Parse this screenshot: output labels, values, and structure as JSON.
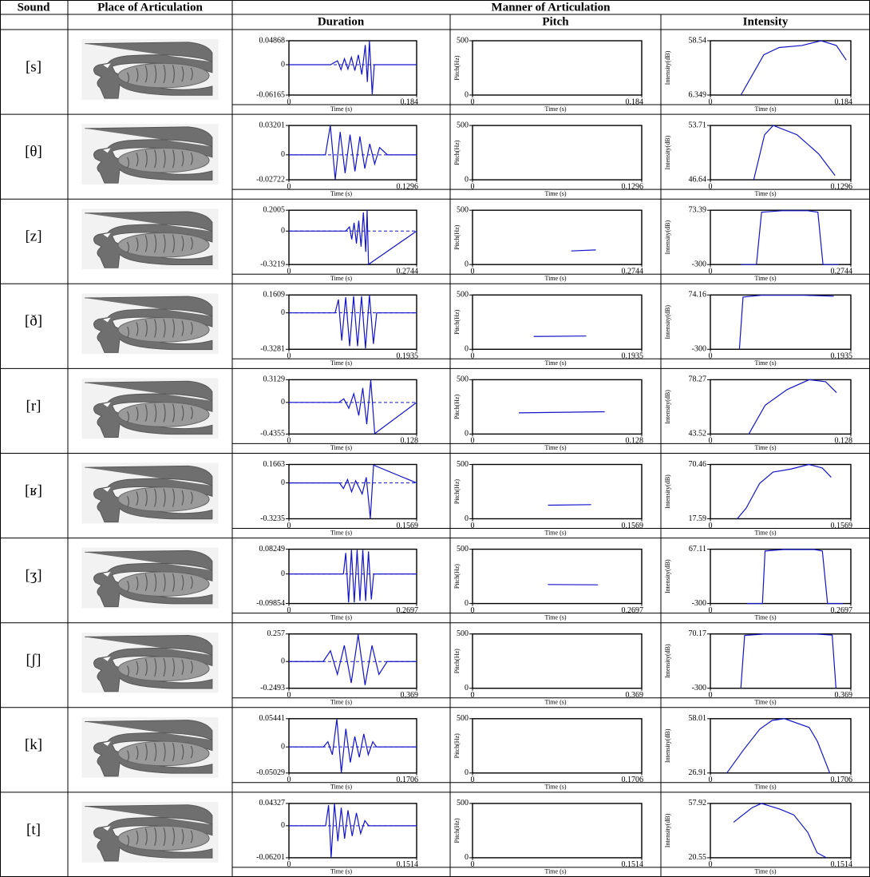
{
  "header": {
    "sound": "Sound",
    "place": "Place of Articulation",
    "manner": "Manner of Articulation",
    "duration": "Duration",
    "pitch": "Pitch",
    "intensity": "Intensity"
  },
  "axis_labels": {
    "time": "Time (s)",
    "pitch": "Pitch(Hz)",
    "intensity": "Intensity(dB)"
  },
  "line_color": "#1414c8",
  "rows": [
    {
      "sound": "[s]",
      "duration": {
        "type": "line",
        "xlim": [
          0,
          0.184
        ],
        "xticks": [
          0,
          0.184
        ],
        "ylim": [
          -0.06165,
          0.04868
        ],
        "yticks": [
          0.04868,
          0,
          -0.06165
        ],
        "x": [
          0,
          0.06,
          0.07,
          0.075,
          0.08,
          0.085,
          0.09,
          0.095,
          0.1,
          0.105,
          0.11,
          0.113,
          0.116,
          0.12,
          0.123,
          0.184
        ],
        "values": [
          0,
          0,
          0.008,
          -0.01,
          0.012,
          -0.009,
          0.015,
          -0.012,
          0.02,
          -0.02,
          0.04,
          -0.035,
          0.048,
          -0.06,
          0,
          0
        ]
      },
      "pitch": {
        "type": "line",
        "xlim": [
          0,
          0.184
        ],
        "xticks": [
          0,
          0.184
        ],
        "ylim": [
          0,
          500
        ],
        "yticks": [
          500,
          0
        ]
      },
      "intensity": {
        "type": "line",
        "xlim": [
          0,
          0.184
        ],
        "xticks": [
          0,
          0.184
        ],
        "ylim": [
          6.349,
          58.54
        ],
        "yticks": [
          58.54,
          6.349
        ],
        "x": [
          0.04,
          0.07,
          0.09,
          0.12,
          0.145,
          0.165,
          0.178
        ],
        "values": [
          6.349,
          45,
          52,
          54,
          58.54,
          54,
          40
        ]
      }
    },
    {
      "sound": "[θ]",
      "duration": {
        "type": "line",
        "xlim": [
          0,
          0.1296
        ],
        "xticks": [
          0,
          0.1296
        ],
        "ylim": [
          -0.02722,
          0.03201
        ],
        "yticks": [
          0.03201,
          0,
          -0.02722
        ],
        "x": [
          0,
          0.037,
          0.042,
          0.047,
          0.052,
          0.057,
          0.062,
          0.067,
          0.072,
          0.077,
          0.082,
          0.087,
          0.092,
          0.1,
          0.1296
        ],
        "values": [
          0,
          0,
          0.032,
          -0.027,
          0.025,
          -0.02,
          0.022,
          -0.018,
          0.02,
          -0.015,
          0.012,
          -0.01,
          0.008,
          0,
          0
        ]
      },
      "pitch": {
        "type": "line",
        "xlim": [
          0,
          0.1296
        ],
        "xticks": [
          0,
          0.1296
        ],
        "ylim": [
          0,
          500
        ],
        "yticks": [
          500,
          0
        ]
      },
      "intensity": {
        "type": "line",
        "xlim": [
          0,
          0.1296
        ],
        "xticks": [
          0,
          0.1296
        ],
        "ylim": [
          46.64,
          53.71
        ],
        "yticks": [
          53.71,
          46.64
        ],
        "x": [
          0.04,
          0.05,
          0.058,
          0.08,
          0.1,
          0.115
        ],
        "values": [
          46.64,
          52.5,
          53.71,
          52.5,
          50,
          47.2
        ]
      }
    },
    {
      "sound": "[z]",
      "duration": {
        "type": "line",
        "xlim": [
          0,
          0.2744
        ],
        "xticks": [
          0,
          0.2744
        ],
        "ylim": [
          -0.3219,
          0.2005
        ],
        "yticks": [
          0.2005,
          0,
          -0.3219
        ],
        "x": [
          0,
          0.122,
          0.13,
          0.135,
          0.14,
          0.145,
          0.15,
          0.155,
          0.16,
          0.165,
          0.168,
          0.171,
          0.2744
        ],
        "values": [
          0,
          0,
          0.04,
          -0.08,
          0.08,
          -0.12,
          0.1,
          -0.15,
          0.18,
          -0.2,
          0.2,
          -0.32,
          0
        ]
      },
      "pitch": {
        "type": "line",
        "xlim": [
          0,
          0.2744
        ],
        "xticks": [
          0,
          0.2744
        ],
        "ylim": [
          0,
          500
        ],
        "yticks": [
          500,
          0
        ],
        "x": [
          0.16,
          0.2
        ],
        "values": [
          125,
          135
        ]
      },
      "intensity": {
        "type": "line",
        "xlim": [
          0,
          0.2744
        ],
        "xticks": [
          0,
          0.2744
        ],
        "ylim": [
          -300,
          73.39
        ],
        "yticks": [
          73.39,
          -300
        ],
        "x": [
          0.06,
          0.09,
          0.1,
          0.14,
          0.19,
          0.21,
          0.22,
          0.25
        ],
        "values": [
          -300,
          -300,
          60,
          70,
          70,
          60,
          -300,
          -300
        ]
      }
    },
    {
      "sound": "[ð]",
      "duration": {
        "type": "line",
        "xlim": [
          0,
          0.1935
        ],
        "xticks": [
          0,
          0.1935
        ],
        "ylim": [
          -0.3281,
          0.1609
        ],
        "yticks": [
          0.1609,
          0,
          -0.3281
        ],
        "x": [
          0,
          0.07,
          0.075,
          0.08,
          0.086,
          0.092,
          0.098,
          0.104,
          0.11,
          0.116,
          0.122,
          0.128,
          0.133,
          0.1935
        ],
        "values": [
          0,
          0,
          0.12,
          -0.25,
          0.14,
          -0.3,
          0.15,
          -0.3,
          0.15,
          -0.32,
          0.16,
          -0.28,
          0,
          0
        ]
      },
      "pitch": {
        "type": "line",
        "xlim": [
          0,
          0.1935
        ],
        "xticks": [
          0,
          0.1935
        ],
        "ylim": [
          0,
          500
        ],
        "yticks": [
          500,
          0
        ],
        "x": [
          0.07,
          0.13
        ],
        "values": [
          118,
          122
        ]
      },
      "intensity": {
        "type": "line",
        "xlim": [
          0,
          0.1935
        ],
        "xticks": [
          0,
          0.1935
        ],
        "ylim": [
          -300,
          74.16
        ],
        "yticks": [
          74.16,
          -300
        ],
        "x": [
          0.04,
          0.045,
          0.07,
          0.13,
          0.17
        ],
        "values": [
          -300,
          60,
          72,
          72,
          65
        ]
      }
    },
    {
      "sound": "[r]",
      "duration": {
        "type": "line",
        "xlim": [
          0,
          0.128
        ],
        "xticks": [
          0,
          0.128
        ],
        "ylim": [
          -0.4355,
          0.3129
        ],
        "yticks": [
          0.3129,
          0,
          -0.4355
        ],
        "x": [
          0,
          0.05,
          0.055,
          0.06,
          0.065,
          0.07,
          0.074,
          0.078,
          0.082,
          0.086,
          0.128
        ],
        "values": [
          0,
          0,
          0.05,
          -0.08,
          0.12,
          -0.18,
          0.2,
          -0.3,
          0.31,
          -0.43,
          0
        ]
      },
      "pitch": {
        "type": "line",
        "xlim": [
          0,
          0.128
        ],
        "xticks": [
          0,
          0.128
        ],
        "ylim": [
          0,
          500
        ],
        "yticks": [
          500,
          0
        ],
        "x": [
          0.035,
          0.1
        ],
        "values": [
          195,
          205
        ]
      },
      "intensity": {
        "type": "line",
        "xlim": [
          0,
          0.128
        ],
        "xticks": [
          0,
          0.128
        ],
        "ylim": [
          43.52,
          78.27
        ],
        "yticks": [
          78.27,
          43.52
        ],
        "x": [
          0.035,
          0.05,
          0.07,
          0.09,
          0.105,
          0.115
        ],
        "values": [
          43.52,
          62,
          72,
          78.27,
          77,
          70
        ]
      }
    },
    {
      "sound": "[ʁ]",
      "duration": {
        "type": "line",
        "xlim": [
          0,
          0.1569
        ],
        "xticks": [
          0,
          0.1569
        ],
        "ylim": [
          -0.3235,
          0.1663
        ],
        "yticks": [
          0.1663,
          0,
          -0.3235
        ],
        "x": [
          0,
          0.062,
          0.067,
          0.072,
          0.077,
          0.082,
          0.09,
          0.095,
          0.1,
          0.104,
          0.1569
        ],
        "values": [
          0,
          0,
          -0.05,
          0.03,
          -0.08,
          0.02,
          -0.1,
          0.05,
          -0.32,
          0.16,
          0
        ]
      },
      "pitch": {
        "type": "line",
        "xlim": [
          0,
          0.1569
        ],
        "xticks": [
          0,
          0.1569
        ],
        "ylim": [
          0,
          500
        ],
        "yticks": [
          500,
          0
        ],
        "x": [
          0.07,
          0.11
        ],
        "values": [
          125,
          130
        ]
      },
      "intensity": {
        "type": "line",
        "xlim": [
          0,
          0.1569
        ],
        "xticks": [
          0,
          0.1569
        ],
        "ylim": [
          17.59,
          70.46
        ],
        "yticks": [
          70.46,
          17.59
        ],
        "x": [
          0.03,
          0.04,
          0.055,
          0.07,
          0.09,
          0.11,
          0.125,
          0.135
        ],
        "values": [
          17.59,
          28,
          52,
          63,
          66,
          70.46,
          67,
          58
        ]
      }
    },
    {
      "sound": "[ʒ]",
      "duration": {
        "type": "line",
        "xlim": [
          0,
          0.2697
        ],
        "xticks": [
          0,
          0.2697
        ],
        "ylim": [
          -0.09854,
          0.08249
        ],
        "yticks": [
          0.08249,
          0,
          -0.09854
        ],
        "x": [
          0,
          0.115,
          0.12,
          0.126,
          0.132,
          0.138,
          0.144,
          0.15,
          0.156,
          0.162,
          0.168,
          0.174,
          0.179,
          0.2697
        ],
        "values": [
          0,
          0,
          0.07,
          -0.095,
          0.08,
          -0.095,
          0.08,
          -0.09,
          0.08,
          -0.09,
          0.075,
          -0.085,
          0,
          0
        ]
      },
      "pitch": {
        "type": "line",
        "xlim": [
          0,
          0.2697
        ],
        "xticks": [
          0,
          0.2697
        ],
        "ylim": [
          0,
          500
        ],
        "yticks": [
          500,
          0
        ],
        "x": [
          0.12,
          0.2
        ],
        "values": [
          175,
          172
        ]
      },
      "intensity": {
        "type": "line",
        "xlim": [
          0,
          0.2697
        ],
        "xticks": [
          0,
          0.2697
        ],
        "ylim": [
          -300,
          67.11
        ],
        "yticks": [
          67.11,
          -300
        ],
        "x": [
          0.07,
          0.1,
          0.105,
          0.14,
          0.2,
          0.215,
          0.225,
          0.255
        ],
        "values": [
          -300,
          -300,
          55,
          65,
          65,
          55,
          -300,
          -300
        ]
      }
    },
    {
      "sound": "[ʃ]",
      "duration": {
        "type": "line",
        "xlim": [
          0,
          0.369
        ],
        "xticks": [
          0,
          0.369
        ],
        "ylim": [
          -0.2493,
          0.257
        ],
        "yticks": [
          0.257,
          0,
          -0.2493
        ],
        "x": [
          0,
          0.099,
          0.12,
          0.14,
          0.16,
          0.18,
          0.2,
          0.22,
          0.24,
          0.26,
          0.284,
          0.369
        ],
        "values": [
          0,
          0,
          0.1,
          -0.12,
          0.15,
          -0.2,
          0.25,
          -0.22,
          0.15,
          -0.12,
          0,
          0
        ]
      },
      "pitch": {
        "type": "line",
        "xlim": [
          0,
          0.369
        ],
        "xticks": [
          0,
          0.369
        ],
        "ylim": [
          0,
          500
        ],
        "yticks": [
          500,
          0
        ]
      },
      "intensity": {
        "type": "line",
        "xlim": [
          0,
          0.369
        ],
        "xticks": [
          0,
          0.369
        ],
        "ylim": [
          -300,
          70.17
        ],
        "yticks": [
          70.17,
          -300
        ],
        "x": [
          0.08,
          0.09,
          0.14,
          0.28,
          0.32,
          0.33
        ],
        "values": [
          -300,
          60,
          69,
          69,
          62,
          -300
        ]
      }
    },
    {
      "sound": "[k]",
      "duration": {
        "type": "line",
        "xlim": [
          0,
          0.1706
        ],
        "xticks": [
          0,
          0.1706
        ],
        "ylim": [
          -0.05029,
          0.05441
        ],
        "yticks": [
          0.05441,
          0,
          -0.05029
        ],
        "x": [
          0,
          0.046,
          0.052,
          0.058,
          0.064,
          0.07,
          0.076,
          0.082,
          0.088,
          0.094,
          0.1,
          0.106,
          0.112,
          0.117,
          0.1706
        ],
        "values": [
          0,
          0,
          0.01,
          -0.015,
          0.054,
          -0.05,
          0.035,
          -0.03,
          0.02,
          -0.02,
          0.025,
          -0.015,
          0.01,
          0,
          0
        ]
      },
      "pitch": {
        "type": "line",
        "xlim": [
          0,
          0.1706
        ],
        "xticks": [
          0,
          0.1706
        ],
        "ylim": [
          0,
          500
        ],
        "yticks": [
          500,
          0
        ]
      },
      "intensity": {
        "type": "line",
        "xlim": [
          0,
          0.1706
        ],
        "xticks": [
          0,
          0.1706
        ],
        "ylim": [
          26.91,
          58.01
        ],
        "yticks": [
          58.01,
          26.91
        ],
        "x": [
          0.02,
          0.04,
          0.06,
          0.075,
          0.09,
          0.12,
          0.13,
          0.145
        ],
        "values": [
          26.91,
          40,
          52,
          57,
          58.01,
          53,
          45,
          26.91
        ]
      }
    },
    {
      "sound": "[t]",
      "duration": {
        "type": "line",
        "xlim": [
          0,
          0.1514
        ],
        "xticks": [
          0,
          0.1514
        ],
        "ylim": [
          -0.06201,
          0.04327
        ],
        "yticks": [
          0.04327,
          0,
          -0.06201
        ],
        "x": [
          0,
          0.0435,
          0.047,
          0.05,
          0.054,
          0.058,
          0.062,
          0.066,
          0.07,
          0.075,
          0.08,
          0.085,
          0.09,
          0.0946,
          0.1514
        ],
        "values": [
          0,
          0,
          0.04,
          -0.062,
          0.043,
          -0.03,
          0.035,
          -0.025,
          0.03,
          -0.02,
          0.025,
          -0.015,
          0.01,
          0,
          0
        ]
      },
      "pitch": {
        "type": "line",
        "xlim": [
          0,
          0.1514
        ],
        "xticks": [
          0,
          0.1514
        ],
        "ylim": [
          0,
          500
        ],
        "yticks": [
          500,
          0
        ]
      },
      "intensity": {
        "type": "line",
        "xlim": [
          0,
          0.1514
        ],
        "xticks": [
          0,
          0.1514
        ],
        "ylim": [
          20.55,
          57.92
        ],
        "yticks": [
          57.92,
          20.55
        ],
        "x": [
          0.025,
          0.045,
          0.055,
          0.075,
          0.09,
          0.105,
          0.115,
          0.125
        ],
        "values": [
          45,
          55,
          57.92,
          54,
          50,
          38,
          24,
          20.55
        ]
      }
    }
  ]
}
